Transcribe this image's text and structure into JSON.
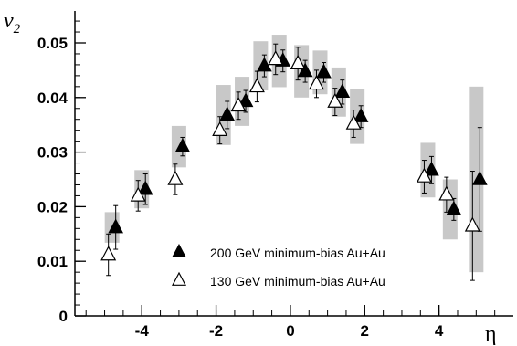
{
  "chart_data": {
    "type": "scatter",
    "xlabel": "η",
    "ylabel": "v",
    "ylabel_sub": "2",
    "xlim": [
      -5.8,
      6.0
    ],
    "ylim": [
      0,
      0.055
    ],
    "x_ticks": [
      -4,
      -2,
      0,
      2,
      4
    ],
    "x_tick_labels": [
      "-4",
      "-2",
      "0",
      "2",
      "4"
    ],
    "y_ticks": [
      0,
      0.01,
      0.02,
      0.03,
      0.04,
      0.05
    ],
    "y_tick_labels": [
      "0",
      "0.01",
      "0.02",
      "0.03",
      "0.04",
      "0.05"
    ],
    "grid": false,
    "legend_position": "bottom-center",
    "series": [
      {
        "name": "200 GeV minimum-bias Au+Au",
        "marker": "filled-triangle",
        "color": "#000000",
        "points": [
          {
            "x": -4.8,
            "y": 0.0162,
            "err": 0.004,
            "sys": 0.0028
          },
          {
            "x": -4.0,
            "y": 0.0232,
            "err": 0.0028,
            "sys": 0.0035
          },
          {
            "x": -3.0,
            "y": 0.031,
            "err": 0.0017,
            "sys": 0.0038
          },
          {
            "x": -1.8,
            "y": 0.0368,
            "err": 0.0025,
            "sys": 0.0055
          },
          {
            "x": -1.3,
            "y": 0.0393,
            "err": 0.002,
            "sys": 0.0045
          },
          {
            "x": -0.8,
            "y": 0.0458,
            "err": 0.002,
            "sys": 0.0045
          },
          {
            "x": -0.3,
            "y": 0.0467,
            "err": 0.002,
            "sys": 0.0048
          },
          {
            "x": 0.3,
            "y": 0.0448,
            "err": 0.002,
            "sys": 0.0048
          },
          {
            "x": 0.8,
            "y": 0.0446,
            "err": 0.0018,
            "sys": 0.004
          },
          {
            "x": 1.3,
            "y": 0.041,
            "err": 0.0022,
            "sys": 0.0045
          },
          {
            "x": 1.8,
            "y": 0.0365,
            "err": 0.002,
            "sys": 0.005
          },
          {
            "x": 3.7,
            "y": 0.0267,
            "err": 0.0025,
            "sys": 0.005
          },
          {
            "x": 4.3,
            "y": 0.0195,
            "err": 0.002,
            "sys": 0.0055
          },
          {
            "x": 5.0,
            "y": 0.025,
            "err": 0.0095,
            "sys": 0.017
          }
        ]
      },
      {
        "name": "130 GeV minimum-bias Au+Au",
        "marker": "open-triangle",
        "color": "#000000",
        "points": [
          {
            "x": -4.8,
            "y": 0.0112,
            "err": 0.0038
          },
          {
            "x": -4.0,
            "y": 0.022,
            "err": 0.0028
          },
          {
            "x": -3.0,
            "y": 0.025,
            "err": 0.0028
          },
          {
            "x": -1.8,
            "y": 0.034,
            "err": 0.0025
          },
          {
            "x": -1.3,
            "y": 0.0385,
            "err": 0.0025
          },
          {
            "x": -0.8,
            "y": 0.042,
            "err": 0.0028
          },
          {
            "x": -0.3,
            "y": 0.047,
            "err": 0.0028
          },
          {
            "x": 0.3,
            "y": 0.0462,
            "err": 0.003
          },
          {
            "x": 0.8,
            "y": 0.0425,
            "err": 0.0025
          },
          {
            "x": 1.3,
            "y": 0.0392,
            "err": 0.0025
          },
          {
            "x": 1.8,
            "y": 0.0352,
            "err": 0.0025
          },
          {
            "x": 3.7,
            "y": 0.0255,
            "err": 0.003
          },
          {
            "x": 4.3,
            "y": 0.0222,
            "err": 0.0032
          },
          {
            "x": 5.0,
            "y": 0.0165,
            "err": 0.01
          }
        ]
      }
    ]
  }
}
